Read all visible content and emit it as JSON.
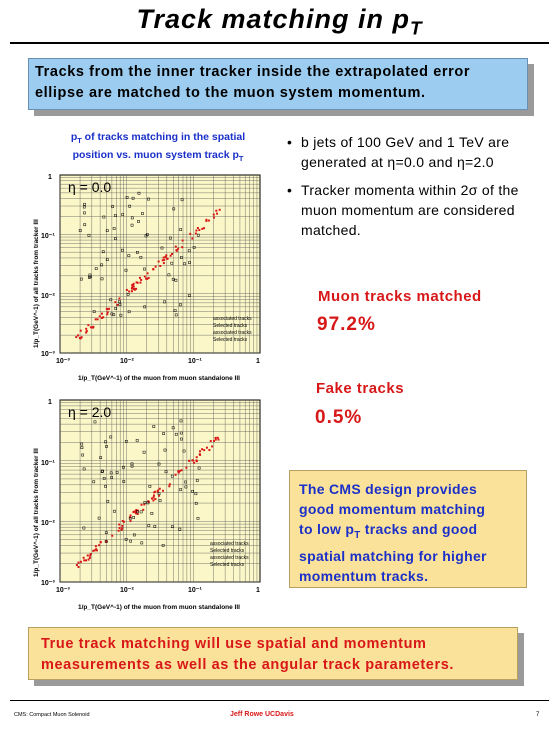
{
  "title": {
    "main": "Track matching in p",
    "sub": "T"
  },
  "intro": "Tracks from the inner tracker inside the extrapolated error ellipse are matched to the muon system momentum.",
  "plot_caption": {
    "line1a": "p",
    "line1sub": "T",
    "line1b": " of tracks matching in the spatial",
    "line2a": "position vs. muon system track p",
    "line2sub": "T"
  },
  "plots": [
    {
      "eta_label": "η = 0.0",
      "ylabel": "1/p_T(GeV^-1) of all tracks from tracker III",
      "xlabel": "1/p_T(GeV^-1) of the muon from muon standalone III",
      "xticks": [
        "10⁻³",
        "10⁻²",
        "10⁻¹",
        "1"
      ],
      "yticks": [
        "1",
        "10⁻¹",
        "10⁻²",
        "10⁻³"
      ],
      "legend": [
        "associated tracks",
        "Selected tracks",
        "associated tracks",
        "Selected tracks"
      ]
    },
    {
      "eta_label": "η = 2.0",
      "ylabel": "1/p_T(GeV^-1) of all tracks from tracker III",
      "xlabel": "1/p_T(GeV^-1) of the muon from muon standalone III",
      "xticks": [
        "10⁻³",
        "10⁻²",
        "10⁻¹",
        "1"
      ],
      "yticks": [
        "1",
        "10⁻¹",
        "10⁻²",
        "10⁻³"
      ],
      "legend": [
        "associated tracks",
        "Selected tracks",
        "associated tracks",
        "Selected tracks"
      ]
    }
  ],
  "bullets": [
    "b jets of 100 GeV and 1 TeV are generated at η=0.0 and η=2.0",
    "Tracker momenta within 2σ of the muon momentum are considered matched."
  ],
  "muon_matched": {
    "label": "Muon tracks matched",
    "value": "97.2%"
  },
  "fake_tracks": {
    "label": "Fake tracks",
    "value": "0.5%"
  },
  "design_box": {
    "l1": "The CMS design provides",
    "l2": "good momentum matching",
    "l3a": "to low p",
    "l3sub": "T",
    "l3b": " tracks and good",
    "l4": "spatial matching for higher",
    "l5": "momentum tracks."
  },
  "bottom_box": "True track matching will use spatial and momentum measurements as well as the angular track parameters.",
  "footer": {
    "left": "CMS: Compact Muon Solenoid",
    "center": "Jeff Rowe   UCDavis",
    "right": "7"
  },
  "colors": {
    "intro_bg": "#9ccdf0",
    "note_bg": "#fbe29b",
    "accent_red": "#d81818",
    "accent_blue": "#1a30c8",
    "plot_bg": "#fbf7c8"
  }
}
